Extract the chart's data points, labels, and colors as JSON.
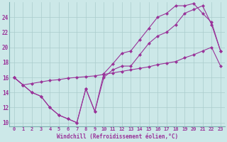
{
  "xlabel": "Windchill (Refroidissement éolien,°C)",
  "background_color": "#cce8e8",
  "grid_color": "#aacccc",
  "line_color": "#993399",
  "xlim": [
    -0.5,
    23.5
  ],
  "ylim": [
    9.5,
    26.0
  ],
  "yticks": [
    10,
    12,
    14,
    16,
    18,
    20,
    22,
    24
  ],
  "xticks": [
    0,
    1,
    2,
    3,
    4,
    5,
    6,
    7,
    8,
    9,
    10,
    11,
    12,
    13,
    14,
    15,
    16,
    17,
    18,
    19,
    20,
    21,
    22,
    23
  ],
  "series1_x": [
    0,
    1,
    2,
    3,
    4,
    5,
    6,
    7,
    8,
    9,
    10,
    11,
    12,
    13,
    14,
    15,
    16,
    17,
    18,
    19,
    20,
    21,
    22,
    23
  ],
  "series1_y": [
    16.0,
    15.0,
    14.0,
    13.5,
    12.0,
    11.0,
    10.5,
    10.0,
    14.5,
    11.5,
    16.0,
    17.0,
    17.5,
    17.5,
    19.0,
    20.5,
    21.5,
    22.0,
    23.0,
    24.5,
    25.0,
    25.5,
    23.0,
    19.5
  ],
  "series2_x": [
    0,
    1,
    2,
    3,
    4,
    5,
    6,
    7,
    8,
    9,
    10,
    11,
    12,
    13,
    14,
    15,
    16,
    17,
    18,
    19,
    20,
    21,
    22,
    23
  ],
  "series2_y": [
    16.0,
    15.0,
    15.2,
    15.4,
    15.6,
    15.7,
    15.9,
    16.0,
    16.1,
    16.2,
    16.4,
    16.6,
    16.8,
    17.0,
    17.2,
    17.4,
    17.7,
    17.9,
    18.1,
    18.6,
    19.0,
    19.5,
    20.0,
    17.5
  ],
  "series3_x": [
    0,
    1,
    2,
    3,
    4,
    5,
    6,
    7,
    8,
    9,
    10,
    11,
    12,
    13,
    14,
    15,
    16,
    17,
    18,
    19,
    20,
    21,
    22,
    23
  ],
  "series3_y": [
    16.0,
    15.0,
    14.0,
    13.5,
    12.0,
    11.0,
    10.5,
    10.0,
    14.5,
    11.5,
    16.5,
    17.8,
    19.2,
    19.5,
    21.0,
    22.5,
    24.0,
    24.5,
    25.5,
    25.5,
    25.8,
    24.5,
    23.3,
    19.5
  ],
  "xlabel_fontsize": 5.5,
  "tick_fontsize": 5.0
}
